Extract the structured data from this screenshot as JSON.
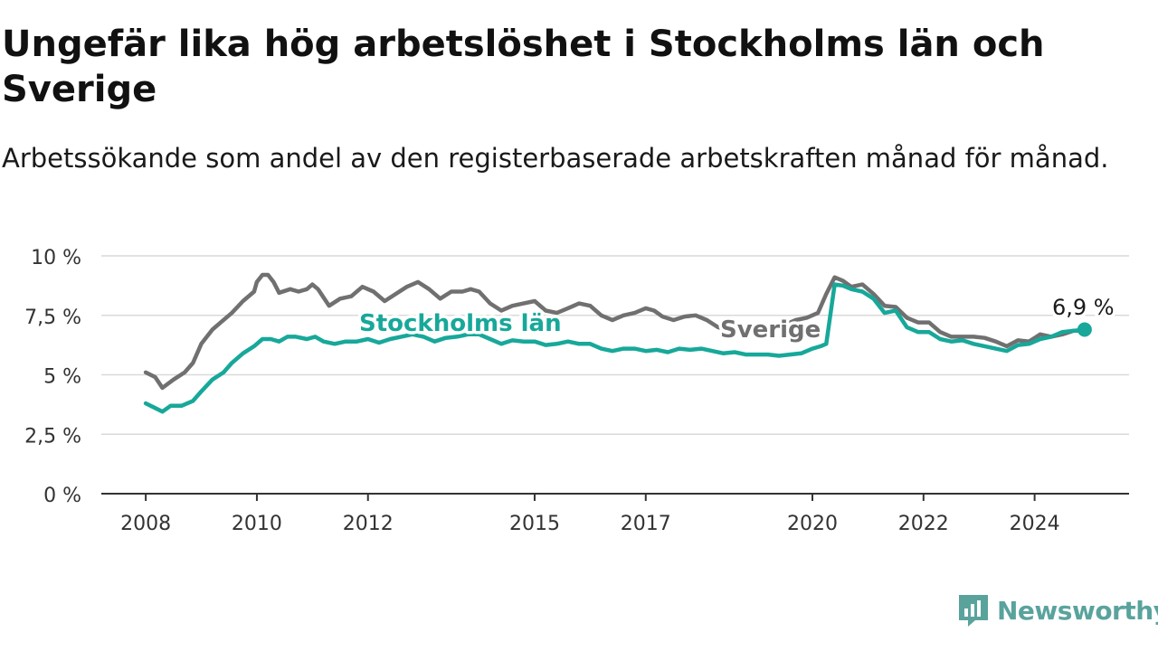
{
  "title": "Ungefär lika hög arbetslöshet i Stockholms län och Sverige",
  "subtitle": "Arbetssökande som andel av den registerbaserade arbetskraften månad för månad.",
  "brand": {
    "name": "Newsworthy",
    "icon": "newsworthy-logo-icon",
    "color": "#5aa39d"
  },
  "chart_data": {
    "type": "line",
    "title": "Ungefär lika hög arbetslöshet i Stockholms län och Sverige",
    "subtitle": "Arbetssökande som andel av den registerbaserade arbetskraften månad för månad.",
    "y_ticks": [
      {
        "value": 0,
        "label": "0 %"
      },
      {
        "value": 2.5,
        "label": "2,5 %"
      },
      {
        "value": 5,
        "label": "5 %"
      },
      {
        "value": 7.5,
        "label": "7,5 %"
      },
      {
        "value": 10,
        "label": "10 %"
      }
    ],
    "x_ticks": [
      {
        "value": 2008,
        "label": "2008"
      },
      {
        "value": 2010,
        "label": "2010"
      },
      {
        "value": 2012,
        "label": "2012"
      },
      {
        "value": 2015,
        "label": "2015"
      },
      {
        "value": 2017,
        "label": "2017"
      },
      {
        "value": 2020,
        "label": "2020"
      },
      {
        "value": 2022,
        "label": "2022"
      },
      {
        "value": 2024,
        "label": "2024"
      }
    ],
    "xlim": [
      2007.2,
      2025.7
    ],
    "ylim": [
      0,
      10
    ],
    "grid": true,
    "end_label": "6,9 %",
    "series": [
      {
        "name": "Sverige",
        "color": "#707070",
        "points": [
          [
            2008.0,
            5.1
          ],
          [
            2008.17,
            4.9
          ],
          [
            2008.3,
            4.45
          ],
          [
            2008.5,
            4.8
          ],
          [
            2008.7,
            5.1
          ],
          [
            2008.85,
            5.5
          ],
          [
            2009.0,
            6.3
          ],
          [
            2009.2,
            6.9
          ],
          [
            2009.35,
            7.2
          ],
          [
            2009.55,
            7.6
          ],
          [
            2009.75,
            8.1
          ],
          [
            2009.95,
            8.5
          ],
          [
            2010.0,
            8.9
          ],
          [
            2010.1,
            9.2
          ],
          [
            2010.2,
            9.2
          ],
          [
            2010.3,
            8.9
          ],
          [
            2010.4,
            8.45
          ],
          [
            2010.6,
            8.6
          ],
          [
            2010.75,
            8.5
          ],
          [
            2010.9,
            8.6
          ],
          [
            2011.0,
            8.8
          ],
          [
            2011.1,
            8.6
          ],
          [
            2011.3,
            7.9
          ],
          [
            2011.5,
            8.2
          ],
          [
            2011.7,
            8.3
          ],
          [
            2011.9,
            8.7
          ],
          [
            2012.1,
            8.5
          ],
          [
            2012.3,
            8.1
          ],
          [
            2012.5,
            8.4
          ],
          [
            2012.7,
            8.7
          ],
          [
            2012.9,
            8.9
          ],
          [
            2013.1,
            8.6
          ],
          [
            2013.3,
            8.2
          ],
          [
            2013.5,
            8.5
          ],
          [
            2013.7,
            8.5
          ],
          [
            2013.85,
            8.6
          ],
          [
            2014.0,
            8.5
          ],
          [
            2014.2,
            8.0
          ],
          [
            2014.4,
            7.7
          ],
          [
            2014.6,
            7.9
          ],
          [
            2014.8,
            8.0
          ],
          [
            2015.0,
            8.1
          ],
          [
            2015.2,
            7.7
          ],
          [
            2015.4,
            7.6
          ],
          [
            2015.6,
            7.8
          ],
          [
            2015.8,
            8.0
          ],
          [
            2016.0,
            7.9
          ],
          [
            2016.2,
            7.5
          ],
          [
            2016.4,
            7.3
          ],
          [
            2016.6,
            7.5
          ],
          [
            2016.8,
            7.6
          ],
          [
            2017.0,
            7.8
          ],
          [
            2017.15,
            7.7
          ],
          [
            2017.3,
            7.45
          ],
          [
            2017.5,
            7.3
          ],
          [
            2017.7,
            7.45
          ],
          [
            2017.9,
            7.5
          ],
          [
            2018.1,
            7.3
          ],
          [
            2018.3,
            7.0
          ],
          [
            2018.5,
            6.9
          ],
          [
            2018.7,
            6.8
          ],
          [
            2018.9,
            6.8
          ],
          [
            2019.1,
            6.85
          ],
          [
            2019.3,
            7.0
          ],
          [
            2019.5,
            7.1
          ],
          [
            2019.7,
            7.3
          ],
          [
            2019.9,
            7.4
          ],
          [
            2020.1,
            7.6
          ],
          [
            2020.25,
            8.4
          ],
          [
            2020.4,
            9.1
          ],
          [
            2020.55,
            8.95
          ],
          [
            2020.7,
            8.7
          ],
          [
            2020.9,
            8.8
          ],
          [
            2021.1,
            8.4
          ],
          [
            2021.3,
            7.9
          ],
          [
            2021.5,
            7.85
          ],
          [
            2021.7,
            7.4
          ],
          [
            2021.9,
            7.2
          ],
          [
            2022.1,
            7.2
          ],
          [
            2022.3,
            6.8
          ],
          [
            2022.5,
            6.6
          ],
          [
            2022.7,
            6.6
          ],
          [
            2022.9,
            6.6
          ],
          [
            2023.1,
            6.55
          ],
          [
            2023.3,
            6.4
          ],
          [
            2023.5,
            6.2
          ],
          [
            2023.7,
            6.45
          ],
          [
            2023.9,
            6.4
          ],
          [
            2024.1,
            6.7
          ],
          [
            2024.3,
            6.6
          ],
          [
            2024.5,
            6.7
          ],
          [
            2024.7,
            6.85
          ],
          [
            2024.9,
            6.85
          ]
        ]
      },
      {
        "name": "Stockholms län",
        "color": "#17a89a",
        "points": [
          [
            2008.0,
            3.8
          ],
          [
            2008.17,
            3.6
          ],
          [
            2008.3,
            3.45
          ],
          [
            2008.45,
            3.7
          ],
          [
            2008.65,
            3.7
          ],
          [
            2008.85,
            3.9
          ],
          [
            2009.0,
            4.3
          ],
          [
            2009.2,
            4.8
          ],
          [
            2009.4,
            5.1
          ],
          [
            2009.55,
            5.5
          ],
          [
            2009.75,
            5.9
          ],
          [
            2009.95,
            6.2
          ],
          [
            2010.1,
            6.5
          ],
          [
            2010.25,
            6.5
          ],
          [
            2010.4,
            6.4
          ],
          [
            2010.55,
            6.6
          ],
          [
            2010.7,
            6.6
          ],
          [
            2010.9,
            6.5
          ],
          [
            2011.05,
            6.6
          ],
          [
            2011.2,
            6.4
          ],
          [
            2011.4,
            6.3
          ],
          [
            2011.6,
            6.4
          ],
          [
            2011.8,
            6.4
          ],
          [
            2012.0,
            6.5
          ],
          [
            2012.2,
            6.35
          ],
          [
            2012.4,
            6.5
          ],
          [
            2012.6,
            6.6
          ],
          [
            2012.8,
            6.7
          ],
          [
            2013.0,
            6.6
          ],
          [
            2013.2,
            6.4
          ],
          [
            2013.4,
            6.55
          ],
          [
            2013.6,
            6.6
          ],
          [
            2013.8,
            6.7
          ],
          [
            2014.0,
            6.7
          ],
          [
            2014.2,
            6.5
          ],
          [
            2014.4,
            6.3
          ],
          [
            2014.6,
            6.45
          ],
          [
            2014.8,
            6.4
          ],
          [
            2015.0,
            6.4
          ],
          [
            2015.2,
            6.25
          ],
          [
            2015.4,
            6.3
          ],
          [
            2015.6,
            6.4
          ],
          [
            2015.8,
            6.3
          ],
          [
            2016.0,
            6.3
          ],
          [
            2016.2,
            6.1
          ],
          [
            2016.4,
            6.0
          ],
          [
            2016.6,
            6.1
          ],
          [
            2016.8,
            6.1
          ],
          [
            2017.0,
            6.0
          ],
          [
            2017.2,
            6.05
          ],
          [
            2017.4,
            5.95
          ],
          [
            2017.6,
            6.1
          ],
          [
            2017.8,
            6.05
          ],
          [
            2018.0,
            6.1
          ],
          [
            2018.2,
            6.0
          ],
          [
            2018.4,
            5.9
          ],
          [
            2018.6,
            5.95
          ],
          [
            2018.8,
            5.85
          ],
          [
            2019.0,
            5.85
          ],
          [
            2019.2,
            5.85
          ],
          [
            2019.4,
            5.8
          ],
          [
            2019.6,
            5.85
          ],
          [
            2019.8,
            5.9
          ],
          [
            2020.0,
            6.1
          ],
          [
            2020.15,
            6.2
          ],
          [
            2020.25,
            6.3
          ],
          [
            2020.4,
            8.8
          ],
          [
            2020.55,
            8.75
          ],
          [
            2020.7,
            8.6
          ],
          [
            2020.9,
            8.5
          ],
          [
            2021.1,
            8.2
          ],
          [
            2021.3,
            7.6
          ],
          [
            2021.5,
            7.7
          ],
          [
            2021.7,
            7.0
          ],
          [
            2021.9,
            6.8
          ],
          [
            2022.1,
            6.8
          ],
          [
            2022.3,
            6.5
          ],
          [
            2022.5,
            6.4
          ],
          [
            2022.7,
            6.45
          ],
          [
            2022.9,
            6.3
          ],
          [
            2023.1,
            6.2
          ],
          [
            2023.3,
            6.1
          ],
          [
            2023.5,
            6.0
          ],
          [
            2023.7,
            6.25
          ],
          [
            2023.9,
            6.3
          ],
          [
            2024.1,
            6.5
          ],
          [
            2024.3,
            6.6
          ],
          [
            2024.5,
            6.8
          ],
          [
            2024.7,
            6.85
          ],
          [
            2024.9,
            6.9
          ]
        ]
      }
    ]
  }
}
